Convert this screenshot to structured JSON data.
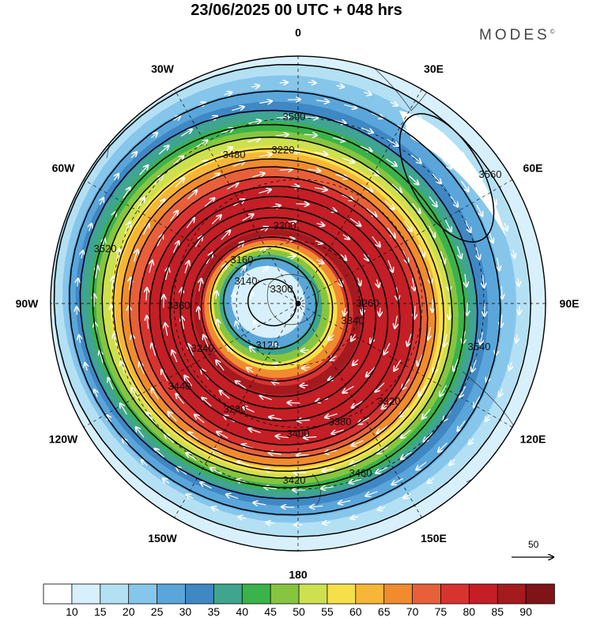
{
  "header": {
    "title": "23/06/2025  00 UTC  + 048 hrs",
    "brand": "MODES"
  },
  "map": {
    "projection": "south-polar-stereographic",
    "longitude_labels": [
      {
        "lon": 0,
        "text": "0"
      },
      {
        "lon": 30,
        "text": "30E"
      },
      {
        "lon": 60,
        "text": "60E"
      },
      {
        "lon": 90,
        "text": "90E"
      },
      {
        "lon": 120,
        "text": "120E"
      },
      {
        "lon": 150,
        "text": "150E"
      },
      {
        "lon": 180,
        "text": "180"
      },
      {
        "lon": -150,
        "text": "150W"
      },
      {
        "lon": -120,
        "text": "120W"
      },
      {
        "lon": -90,
        "text": "90W"
      },
      {
        "lon": -60,
        "text": "60W"
      },
      {
        "lon": -30,
        "text": "30W"
      }
    ],
    "contour_labels": [
      "3500",
      "3480",
      "3420",
      "3400",
      "3200",
      "3120",
      "3140",
      "3160",
      "3560",
      "3540",
      "3520",
      "3260",
      "3240",
      "3300",
      "3440",
      "3380",
      "3360",
      "3320",
      "3280",
      "3460",
      "3340",
      "3220"
    ],
    "vector_reference": {
      "value": "50"
    }
  },
  "colorbar": {
    "ticks": [
      "10",
      "15",
      "20",
      "25",
      "30",
      "35",
      "40",
      "45",
      "50",
      "55",
      "60",
      "65",
      "70",
      "75",
      "80",
      "85",
      "90"
    ],
    "colors": [
      "#ffffff",
      "#d8f0fb",
      "#b4e0f4",
      "#86c6eb",
      "#5aa6da",
      "#3f88c4",
      "#3fa58e",
      "#3ab34a",
      "#87c540",
      "#cde04f",
      "#f6e04a",
      "#f7b637",
      "#f08b2e",
      "#e8603a",
      "#d93330",
      "#c41e26",
      "#a41a1f",
      "#7e1418"
    ]
  }
}
